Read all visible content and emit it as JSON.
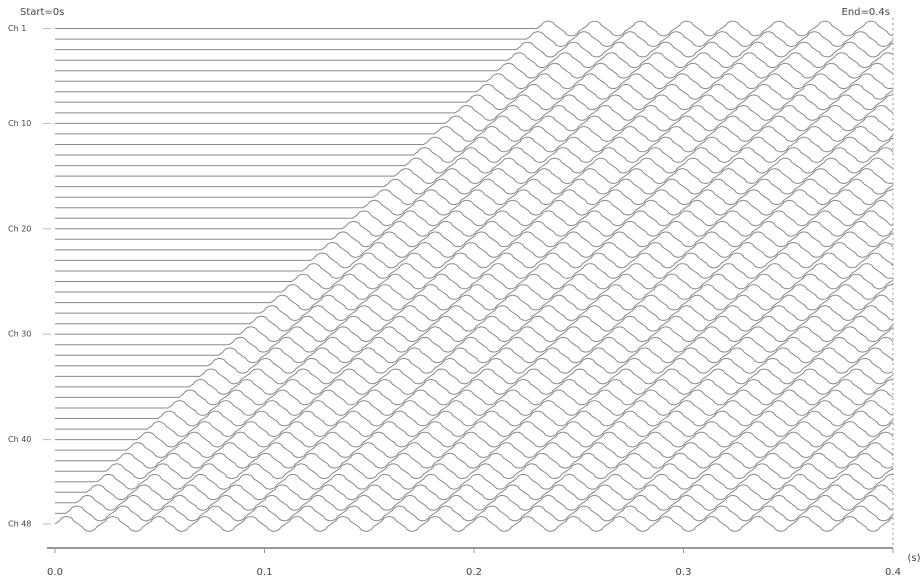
{
  "chart_data": {
    "type": "seismic",
    "start_label": "Start=0s",
    "end_label": "End=0.4s",
    "x_label": "(s)",
    "xlim": [
      0,
      0.4
    ],
    "xticks": [
      {
        "value": 0,
        "label": "0.0"
      },
      {
        "value": 0.1,
        "label": "0.1"
      },
      {
        "value": 0.2,
        "label": "0.2"
      },
      {
        "value": 0.3,
        "label": "0.3"
      },
      {
        "value": 0.4,
        "label": "0.4"
      }
    ],
    "ylim": [
      0,
      50
    ],
    "yticks": [
      {
        "value": 1,
        "label": "Ch 1"
      },
      {
        "value": 10,
        "label": "Ch 10"
      },
      {
        "value": 20,
        "label": "Ch 20"
      },
      {
        "value": 30,
        "label": "Ch 30"
      },
      {
        "value": 40,
        "label": "Ch 40"
      },
      {
        "value": 48,
        "label": "Ch 48"
      }
    ],
    "channels": [
      1,
      2,
      3,
      4,
      5,
      6,
      7,
      8,
      9,
      10,
      11,
      12,
      13,
      14,
      15,
      16,
      17,
      18,
      19,
      20,
      21,
      22,
      23,
      24,
      25,
      26,
      27,
      28,
      29,
      30,
      31,
      32,
      33,
      34,
      35,
      36,
      37,
      38,
      39,
      40,
      41,
      42,
      43,
      44,
      45,
      46,
      47,
      48
    ],
    "arrivals": [
      0.23,
      0.225,
      0.22,
      0.216,
      0.211,
      0.206,
      0.201,
      0.196,
      0.191,
      0.186,
      0.181,
      0.176,
      0.171,
      0.167,
      0.162,
      0.157,
      0.152,
      0.147,
      0.142,
      0.137,
      0.132,
      0.127,
      0.122,
      0.118,
      0.113,
      0.108,
      0.103,
      0.098,
      0.093,
      0.088,
      0.083,
      0.078,
      0.073,
      0.069,
      0.064,
      0.059,
      0.054,
      0.049,
      0.044,
      0.039,
      0.034,
      0.029,
      0.024,
      0.02,
      0.015,
      0.01,
      0.005,
      0.0
    ],
    "wiggle": {
      "amplitude": 0.7,
      "period": 0.022
    },
    "color": "#8a8a8a"
  }
}
